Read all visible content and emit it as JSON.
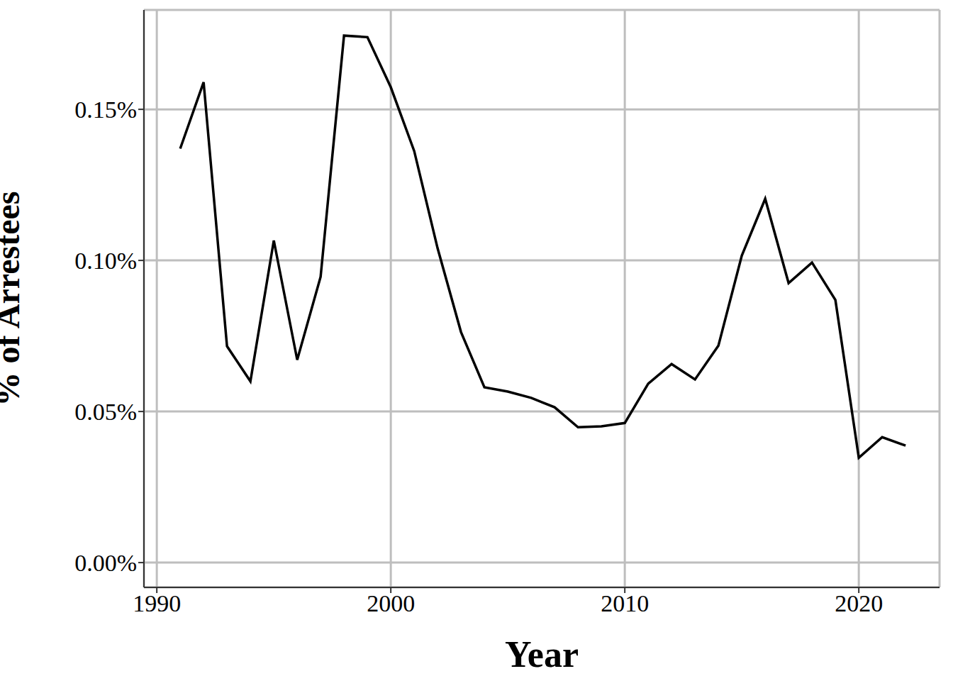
{
  "chart_data": {
    "type": "line",
    "x_label": "Year",
    "y_label": "% of Arrestees",
    "x": [
      1991,
      1992,
      1993,
      1994,
      1995,
      1996,
      1997,
      1998,
      1999,
      2000,
      2001,
      2002,
      2003,
      2004,
      2005,
      2006,
      2007,
      2008,
      2009,
      2010,
      2011,
      2012,
      2013,
      2014,
      2015,
      2016,
      2017,
      2018,
      2019,
      2020,
      2021,
      2022
    ],
    "values": [
      0.137,
      0.159,
      0.0716,
      0.06,
      0.1066,
      0.0671,
      0.0946,
      0.1744,
      0.1739,
      0.1573,
      0.1362,
      0.104,
      0.0763,
      0.058,
      0.0566,
      0.0545,
      0.0514,
      0.0448,
      0.0451,
      0.0462,
      0.0592,
      0.0657,
      0.0606,
      0.0718,
      0.1016,
      0.1204,
      0.0925,
      0.0993,
      0.0869,
      0.0347,
      0.0415,
      0.0387
    ],
    "color": "#000000",
    "xlim": [
      1989.45,
      2023.45
    ],
    "xticks": [
      1990,
      2000,
      2010,
      2020
    ],
    "ylim": [
      -0.0082,
      0.1829
    ],
    "yticks": [
      {
        "value": 0,
        "label": "0.00%"
      },
      {
        "value": 0.05,
        "label": "0.05%"
      },
      {
        "value": 0.1,
        "label": "0.10%"
      },
      {
        "value": 0.15,
        "label": "0.15%"
      }
    ],
    "grid": true
  }
}
